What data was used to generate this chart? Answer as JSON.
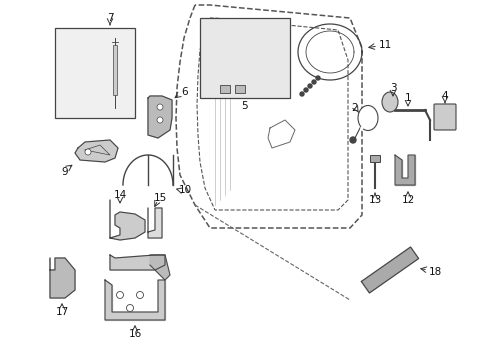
{
  "background_color": "#ffffff",
  "figsize": [
    4.89,
    3.6
  ],
  "dpi": 100,
  "lc": "#333333",
  "pc": "#444444",
  "label_fontsize": 7.5,
  "label_color": "#111111"
}
